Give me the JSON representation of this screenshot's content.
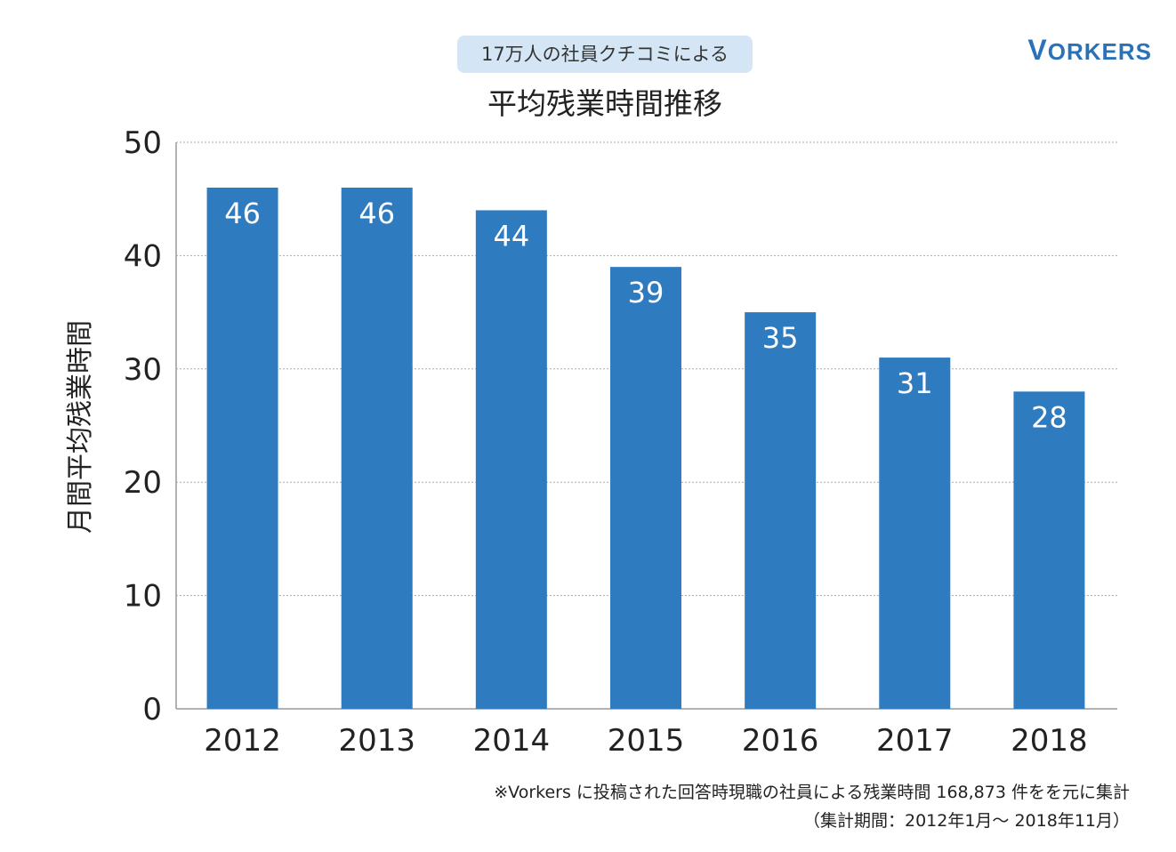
{
  "header": {
    "subtitle": "17万人の社員クチコミによる",
    "title": "平均残業時間推移",
    "brand": "VORKERS"
  },
  "footnotes": [
    "※Vorkers に投稿された回答時現職の社員による残業時間 168,873 件をを元に集計",
    "（集計期間：2012年1月〜 2018年11月）"
  ],
  "colors": {
    "bar": "#2e7bbf",
    "badge_bg": "#d4e6f5",
    "brand": "#2a72b8",
    "grid": "#aaaaaa"
  },
  "chart_data": {
    "type": "bar",
    "title": "平均残業時間推移",
    "subtitle": "17万人の社員クチコミによる",
    "ylabel": "月間平均残業時間",
    "xlabel": "",
    "categories": [
      "2012",
      "2013",
      "2014",
      "2015",
      "2016",
      "2017",
      "2018"
    ],
    "values": [
      46,
      46,
      44,
      39,
      35,
      31,
      28
    ],
    "ylim": [
      0,
      50
    ],
    "yticks": [
      0,
      10,
      20,
      30,
      40,
      50
    ],
    "grid": true,
    "data_labels": true
  }
}
